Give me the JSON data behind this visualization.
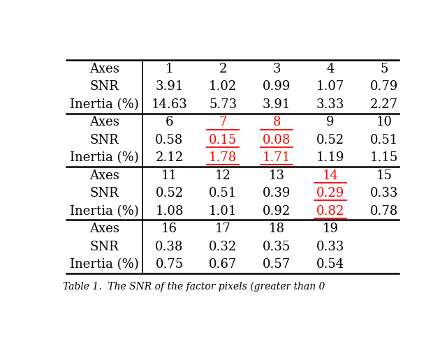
{
  "caption": "Table 1.  The SNR of the factor pixels (greater than 0",
  "background_color": "#ffffff",
  "sections": [
    {
      "axes": [
        "1",
        "2",
        "3",
        "4",
        "5"
      ],
      "snr": [
        "3.91",
        "1.02",
        "0.99",
        "1.07",
        "0.79"
      ],
      "inertia": [
        "14.63",
        "5.73",
        "3.91",
        "3.33",
        "2.27"
      ],
      "red_underline": []
    },
    {
      "axes": [
        "6",
        "7",
        "8",
        "9",
        "10"
      ],
      "snr": [
        "0.58",
        "0.15",
        "0.08",
        "0.52",
        "0.51"
      ],
      "inertia": [
        "2.12",
        "1.78",
        "1.71",
        "1.19",
        "1.15"
      ],
      "red_underline": [
        1,
        2
      ]
    },
    {
      "axes": [
        "11",
        "12",
        "13",
        "14",
        "15"
      ],
      "snr": [
        "0.52",
        "0.51",
        "0.39",
        "0.29",
        "0.33"
      ],
      "inertia": [
        "1.08",
        "1.01",
        "0.92",
        "0.82",
        "0.78"
      ],
      "red_underline": [
        3
      ]
    },
    {
      "axes": [
        "16",
        "17",
        "18",
        "19",
        ""
      ],
      "snr": [
        "0.38",
        "0.32",
        "0.35",
        "0.33",
        ""
      ],
      "inertia": [
        "0.75",
        "0.67",
        "0.57",
        "0.54",
        ""
      ],
      "red_underline": []
    }
  ],
  "row_labels": [
    "Axes",
    "SNR",
    "Inertia (%)"
  ],
  "font_size": 13,
  "red_color": "#ff0000",
  "black_color": "#000000"
}
